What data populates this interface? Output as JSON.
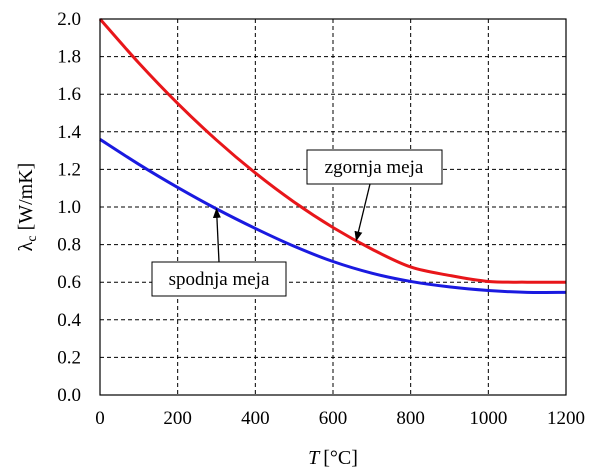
{
  "chart_data": {
    "type": "line",
    "x_label": {
      "symbol": "T",
      "unit": "[°C]"
    },
    "y_label": {
      "symbol": "λ",
      "subscript": "c",
      "unit": "[W/mK]"
    },
    "xlim": [
      0,
      1200
    ],
    "ylim": [
      0,
      2.0
    ],
    "x_ticks": [
      "0",
      "200",
      "400",
      "600",
      "800",
      "1000",
      "1200"
    ],
    "y_ticks": [
      "0.0",
      "0.2",
      "0.4",
      "0.6",
      "0.8",
      "1.0",
      "1.2",
      "1.4",
      "1.6",
      "1.8",
      "2.0"
    ],
    "grid": true,
    "series": [
      {
        "name": "zgornja meja",
        "color": "#e8161a",
        "x": [
          0,
          100,
          200,
          300,
          400,
          500,
          600,
          700,
          800,
          900,
          1000,
          1100,
          1200
        ],
        "y": [
          2.0,
          1.766,
          1.551,
          1.356,
          1.181,
          1.026,
          0.891,
          0.776,
          0.681,
          0.636,
          0.604,
          0.6,
          0.6
        ]
      },
      {
        "name": "spodnja meja",
        "color": "#1a1ae0",
        "x": [
          0,
          100,
          200,
          300,
          400,
          500,
          600,
          700,
          800,
          900,
          1000,
          1100,
          1200
        ],
        "y": [
          1.36,
          1.227,
          1.104,
          0.99,
          0.886,
          0.791,
          0.71,
          0.648,
          0.604,
          0.575,
          0.556,
          0.546,
          0.546
        ]
      }
    ],
    "annotations": [
      {
        "text": "zgornja meja",
        "series": 0,
        "point_x": 660
      },
      {
        "text": "spodnja meja",
        "series": 1,
        "point_x": 300
      }
    ]
  }
}
